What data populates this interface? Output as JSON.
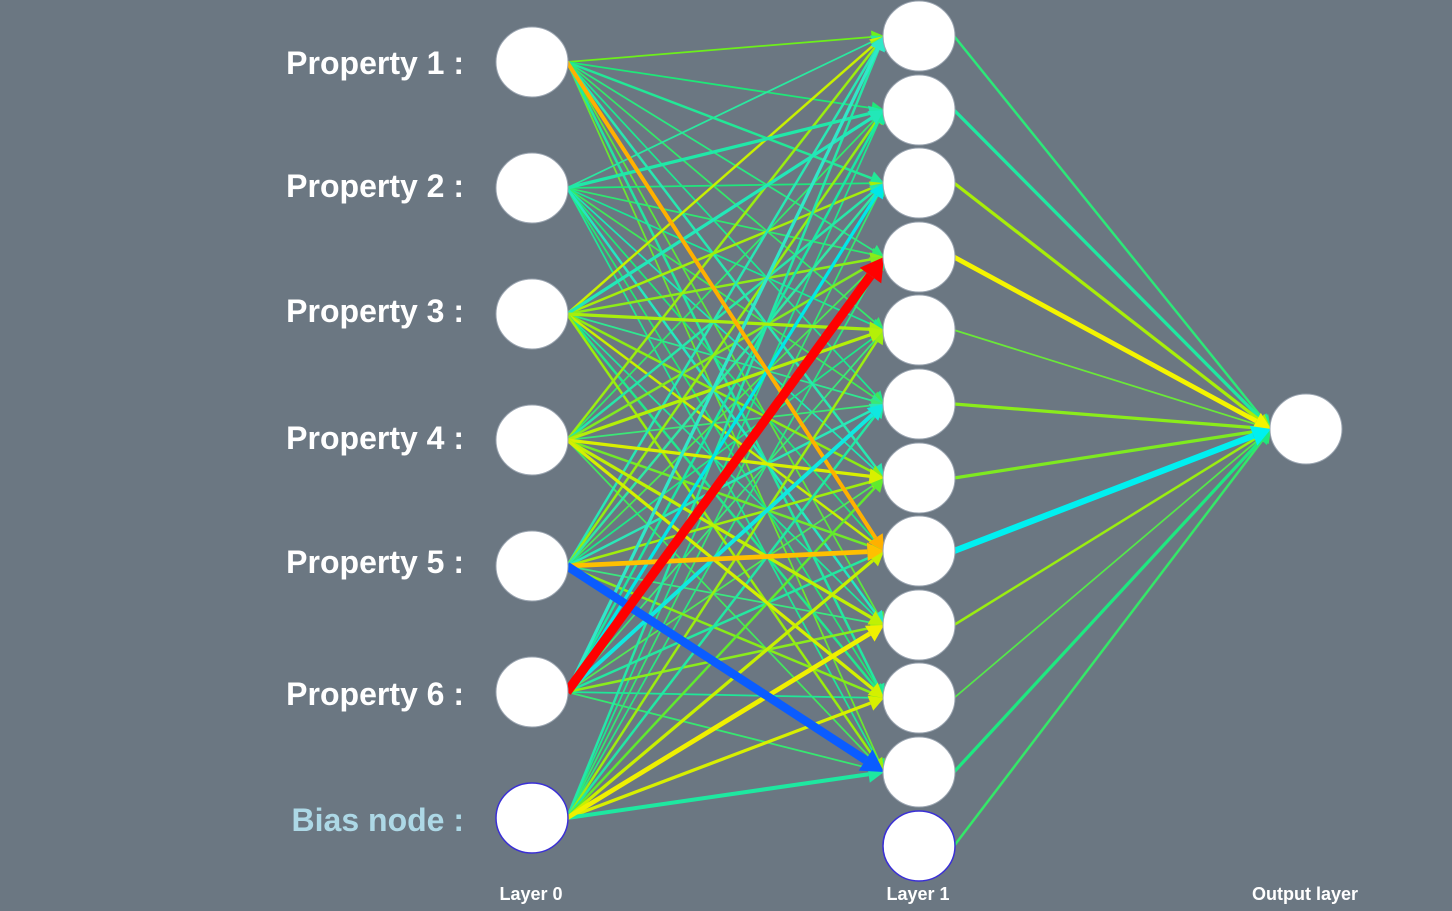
{
  "input_labels": [
    "Property 1 :",
    "Property 2 :",
    "Property 3 :",
    "Property 4 :",
    "Property 5 :",
    "Property 6 :"
  ],
  "bias_label": "Bias node :",
  "layer_labels": {
    "layer0": "Layer 0",
    "layer1": "Layer 1",
    "output": "Output layer"
  },
  "network": {
    "input_nodes": 6,
    "bias_nodes": 1,
    "hidden_nodes": 11,
    "hidden_bias_nodes": 1,
    "output_nodes": 1
  },
  "colors": {
    "background": "#6b7782",
    "node_fill": "#ffffff",
    "bias_node_stroke": "#3a2fd6",
    "label_text": "#ffffff",
    "bias_label_text": "#add8e6"
  },
  "connections_layer0_to_1": [
    {
      "from": 0,
      "to": 0,
      "color": "#6cf01a",
      "strength": 1
    },
    {
      "from": 0,
      "to": 1,
      "color": "#1ee878",
      "strength": 1
    },
    {
      "from": 0,
      "to": 2,
      "color": "#22e896",
      "strength": 2
    },
    {
      "from": 0,
      "to": 3,
      "color": "#2ae880",
      "strength": 1
    },
    {
      "from": 0,
      "to": 4,
      "color": "#34e86a",
      "strength": 1
    },
    {
      "from": 0,
      "to": 5,
      "color": "#1ee890",
      "strength": 1
    },
    {
      "from": 0,
      "to": 6,
      "color": "#28e8b0",
      "strength": 2
    },
    {
      "from": 0,
      "to": 7,
      "color": "#ffb000",
      "strength": 4
    },
    {
      "from": 0,
      "to": 8,
      "color": "#5ae83c",
      "strength": 1
    },
    {
      "from": 0,
      "to": 9,
      "color": "#22e8a0",
      "strength": 2
    },
    {
      "from": 0,
      "to": 10,
      "color": "#6ae830",
      "strength": 1
    },
    {
      "from": 1,
      "to": 0,
      "color": "#2ae8a0",
      "strength": 1
    },
    {
      "from": 1,
      "to": 1,
      "color": "#20e8a8",
      "strength": 3
    },
    {
      "from": 1,
      "to": 2,
      "color": "#1ee87c",
      "strength": 1
    },
    {
      "from": 1,
      "to": 3,
      "color": "#2ee870",
      "strength": 1
    },
    {
      "from": 1,
      "to": 4,
      "color": "#1ae894",
      "strength": 1
    },
    {
      "from": 1,
      "to": 5,
      "color": "#3ee85a",
      "strength": 1
    },
    {
      "from": 1,
      "to": 6,
      "color": "#1ee8b4",
      "strength": 1
    },
    {
      "from": 1,
      "to": 7,
      "color": "#1ee87a",
      "strength": 1
    },
    {
      "from": 1,
      "to": 8,
      "color": "#24e8c0",
      "strength": 2
    },
    {
      "from": 1,
      "to": 9,
      "color": "#22e874",
      "strength": 1
    },
    {
      "from": 1,
      "to": 10,
      "color": "#1ee896",
      "strength": 1
    },
    {
      "from": 2,
      "to": 0,
      "color": "#c8f000",
      "strength": 2
    },
    {
      "from": 2,
      "to": 1,
      "color": "#22e8b8",
      "strength": 3
    },
    {
      "from": 2,
      "to": 2,
      "color": "#a6ee0a",
      "strength": 2
    },
    {
      "from": 2,
      "to": 3,
      "color": "#8cec18",
      "strength": 2
    },
    {
      "from": 2,
      "to": 4,
      "color": "#a8ef0c",
      "strength": 3
    },
    {
      "from": 2,
      "to": 5,
      "color": "#2ee890",
      "strength": 1
    },
    {
      "from": 2,
      "to": 6,
      "color": "#8cec14",
      "strength": 2
    },
    {
      "from": 2,
      "to": 7,
      "color": "#c8f000",
      "strength": 2
    },
    {
      "from": 2,
      "to": 8,
      "color": "#1ee89c",
      "strength": 1
    },
    {
      "from": 2,
      "to": 9,
      "color": "#22e88c",
      "strength": 2
    },
    {
      "from": 2,
      "to": 10,
      "color": "#9aee0c",
      "strength": 2
    },
    {
      "from": 3,
      "to": 0,
      "color": "#9aee10",
      "strength": 2
    },
    {
      "from": 3,
      "to": 1,
      "color": "#32e86c",
      "strength": 1
    },
    {
      "from": 3,
      "to": 2,
      "color": "#26e8a8",
      "strength": 2
    },
    {
      "from": 3,
      "to": 3,
      "color": "#80ea22",
      "strength": 2
    },
    {
      "from": 3,
      "to": 4,
      "color": "#b4f008",
      "strength": 3
    },
    {
      "from": 3,
      "to": 5,
      "color": "#3ae876",
      "strength": 1
    },
    {
      "from": 3,
      "to": 6,
      "color": "#d8f000",
      "strength": 3
    },
    {
      "from": 3,
      "to": 7,
      "color": "#70ea2a",
      "strength": 2
    },
    {
      "from": 3,
      "to": 8,
      "color": "#c0f004",
      "strength": 3
    },
    {
      "from": 3,
      "to": 9,
      "color": "#d4f000",
      "strength": 3
    },
    {
      "from": 3,
      "to": 10,
      "color": "#42e85c",
      "strength": 1
    },
    {
      "from": 4,
      "to": 0,
      "color": "#28e8b4",
      "strength": 2
    },
    {
      "from": 4,
      "to": 1,
      "color": "#94ee12",
      "strength": 2
    },
    {
      "from": 4,
      "to": 2,
      "color": "#30e8a4",
      "strength": 2
    },
    {
      "from": 4,
      "to": 3,
      "color": "#48e856",
      "strength": 1
    },
    {
      "from": 4,
      "to": 4,
      "color": "#1ee888",
      "strength": 1
    },
    {
      "from": 4,
      "to": 5,
      "color": "#2ae8b8",
      "strength": 2
    },
    {
      "from": 4,
      "to": 6,
      "color": "#a0ee0c",
      "strength": 2
    },
    {
      "from": 4,
      "to": 7,
      "color": "#ffc000",
      "strength": 5
    },
    {
      "from": 4,
      "to": 8,
      "color": "#3ae87e",
      "strength": 1
    },
    {
      "from": 4,
      "to": 9,
      "color": "#88ec18",
      "strength": 2
    },
    {
      "from": 4,
      "to": 10,
      "color": "#0a5cff",
      "strength": 10
    },
    {
      "from": 5,
      "to": 0,
      "color": "#30e8c8",
      "strength": 3
    },
    {
      "from": 5,
      "to": 1,
      "color": "#1ae8a4",
      "strength": 2
    },
    {
      "from": 5,
      "to": 2,
      "color": "#00e8e8",
      "strength": 3
    },
    {
      "from": 5,
      "to": 3,
      "color": "#ff0000",
      "strength": 11
    },
    {
      "from": 5,
      "to": 4,
      "color": "#3ae878",
      "strength": 1
    },
    {
      "from": 5,
      "to": 5,
      "color": "#10e8e0",
      "strength": 4
    },
    {
      "from": 5,
      "to": 6,
      "color": "#50e856",
      "strength": 1
    },
    {
      "from": 5,
      "to": 7,
      "color": "#24e8a0",
      "strength": 2
    },
    {
      "from": 5,
      "to": 8,
      "color": "#8aec1c",
      "strength": 2
    },
    {
      "from": 5,
      "to": 9,
      "color": "#1ee898",
      "strength": 1
    },
    {
      "from": 5,
      "to": 10,
      "color": "#36e870",
      "strength": 1
    },
    {
      "from": 6,
      "to": 0,
      "color": "#24e8a8",
      "strength": 2
    },
    {
      "from": 6,
      "to": 1,
      "color": "#1ee890",
      "strength": 1
    },
    {
      "from": 6,
      "to": 2,
      "color": "#34e874",
      "strength": 1
    },
    {
      "from": 6,
      "to": 3,
      "color": "#2ae882",
      "strength": 1
    },
    {
      "from": 6,
      "to": 4,
      "color": "#9cee10",
      "strength": 2
    },
    {
      "from": 6,
      "to": 5,
      "color": "#22e8a4",
      "strength": 2
    },
    {
      "from": 6,
      "to": 6,
      "color": "#60ea2e",
      "strength": 2
    },
    {
      "from": 6,
      "to": 7,
      "color": "#c8f000",
      "strength": 3
    },
    {
      "from": 6,
      "to": 8,
      "color": "#f0f000",
      "strength": 5
    },
    {
      "from": 6,
      "to": 9,
      "color": "#d8f000",
      "strength": 3
    },
    {
      "from": 6,
      "to": 10,
      "color": "#1ee8a0",
      "strength": 4
    }
  ],
  "connections_layer1_to_output": [
    {
      "from": 0,
      "color": "#2ce878",
      "strength": 2
    },
    {
      "from": 1,
      "color": "#20e8a0",
      "strength": 3
    },
    {
      "from": 2,
      "color": "#a8ee08",
      "strength": 3
    },
    {
      "from": 3,
      "color": "#f4f400",
      "strength": 5
    },
    {
      "from": 4,
      "color": "#6ae838",
      "strength": 1
    },
    {
      "from": 5,
      "color": "#8aec1a",
      "strength": 3
    },
    {
      "from": 6,
      "color": "#7eea20",
      "strength": 3
    },
    {
      "from": 7,
      "color": "#00f0f0",
      "strength": 7
    },
    {
      "from": 8,
      "color": "#9aee10",
      "strength": 2
    },
    {
      "from": 9,
      "color": "#54e84a",
      "strength": 1
    },
    {
      "from": 10,
      "color": "#1ee880",
      "strength": 3
    },
    {
      "from": 11,
      "color": "#34e868",
      "strength": 2
    }
  ]
}
